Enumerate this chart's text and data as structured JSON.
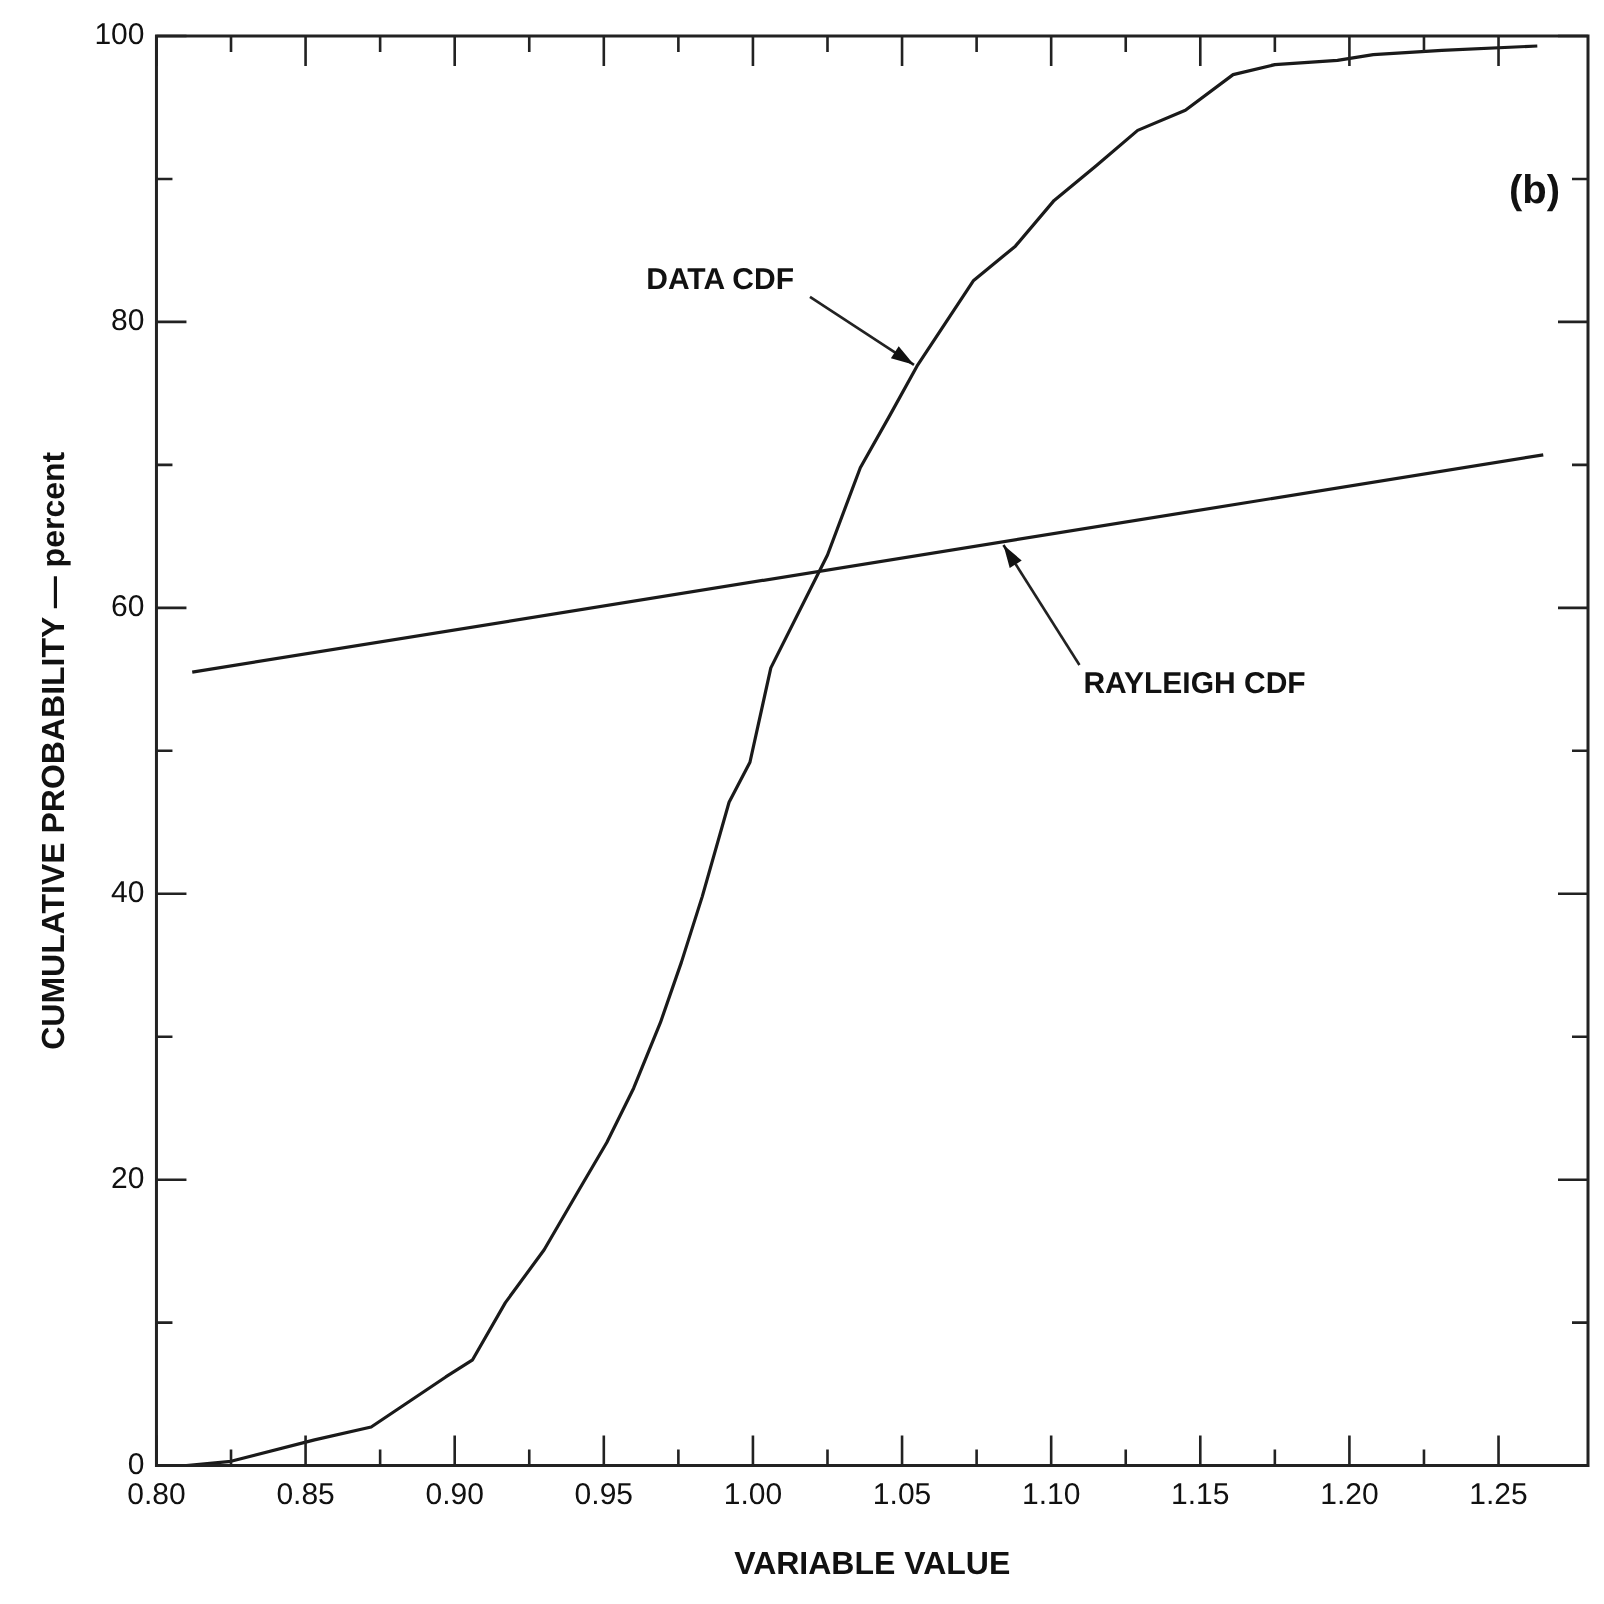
{
  "chart_data": {
    "type": "line",
    "xlabel": "VARIABLE VALUE",
    "ylabel": "CUMULATIVE PROBABILITY — percent",
    "xlim": [
      0.8,
      1.28
    ],
    "ylim": [
      0,
      100
    ],
    "xticks": [
      {
        "value": 0.8,
        "label": "0.80"
      },
      {
        "value": 0.825,
        "label": null
      },
      {
        "value": 0.85,
        "label": "0.85"
      },
      {
        "value": 0.875,
        "label": null
      },
      {
        "value": 0.9,
        "label": "0.90"
      },
      {
        "value": 0.925,
        "label": null
      },
      {
        "value": 0.95,
        "label": "0.95"
      },
      {
        "value": 0.975,
        "label": null
      },
      {
        "value": 1.0,
        "label": "1.00"
      },
      {
        "value": 1.025,
        "label": null
      },
      {
        "value": 1.05,
        "label": "1.05"
      },
      {
        "value": 1.075,
        "label": null
      },
      {
        "value": 1.1,
        "label": "1.10"
      },
      {
        "value": 1.125,
        "label": null
      },
      {
        "value": 1.15,
        "label": "1.15"
      },
      {
        "value": 1.175,
        "label": null
      },
      {
        "value": 1.2,
        "label": "1.20"
      },
      {
        "value": 1.225,
        "label": null
      },
      {
        "value": 1.25,
        "label": "1.25"
      }
    ],
    "yticks": [
      0,
      {
        "value": 10,
        "label": null
      },
      20,
      {
        "value": 30,
        "label": null
      },
      40,
      {
        "value": 50,
        "label": null
      },
      60,
      {
        "value": 70,
        "label": null
      },
      80,
      {
        "value": 90,
        "label": null
      },
      100
    ],
    "series": [
      {
        "color": "#1a1a1a",
        "x": [
          0.81,
          0.825,
          0.853,
          0.872,
          0.897,
          0.906,
          0.917,
          0.93,
          0.942,
          0.951,
          0.96,
          0.969,
          0.976,
          0.983,
          0.992,
          0.999,
          1.006,
          1.025,
          1.036,
          1.046,
          1.055,
          1.074,
          1.088,
          1.101,
          1.115,
          1.129,
          1.145,
          1.161,
          1.175,
          1.196,
          1.208,
          1.231,
          1.263
        ],
        "values": [
          0,
          0.3,
          1.8,
          2.7,
          6.2,
          7.4,
          11.4,
          15.1,
          19.4,
          22.6,
          26.4,
          31,
          35.2,
          39.8,
          46.4,
          49.2,
          55.8,
          63.7,
          69.8,
          73.5,
          76.9,
          82.9,
          85.3,
          88.5,
          90.9,
          93.4,
          94.8,
          97.3,
          98,
          98.3,
          98.7,
          99,
          99.3
        ]
      },
      {
        "color": "#1a1a1a",
        "x": [
          0.812,
          1.265
        ],
        "values": [
          55.5,
          70.7
        ]
      }
    ],
    "annotations": [
      {
        "text": "DATA CDF",
        "x": 1.054,
        "y": 77
      },
      {
        "text": "RAYLEIGH CDF",
        "x": 1.084,
        "y": 64.4
      },
      "(b)"
    ],
    "marker": "none",
    "line_style": "solid",
    "grid": false,
    "legend": false
  }
}
